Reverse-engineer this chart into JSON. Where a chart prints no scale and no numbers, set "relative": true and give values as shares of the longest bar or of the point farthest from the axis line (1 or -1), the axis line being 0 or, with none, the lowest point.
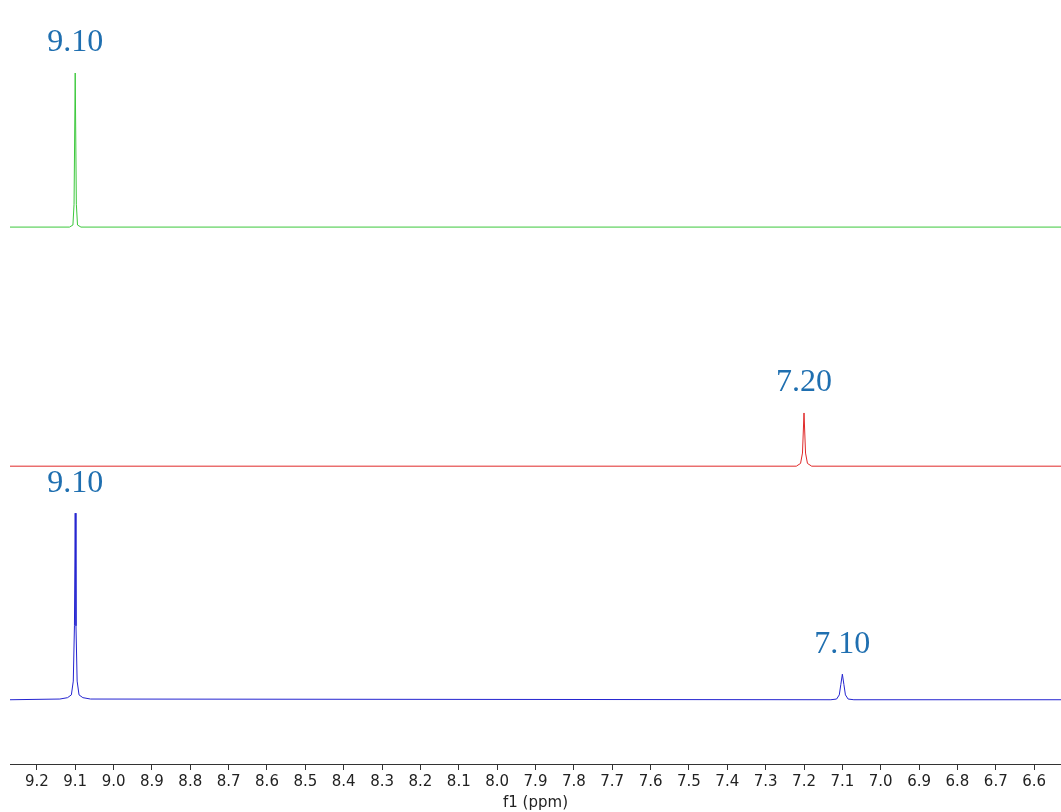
{
  "chart_data": {
    "type": "line",
    "relative": true,
    "xlim": [
      9.27,
      6.53
    ],
    "xlabel": "f1 (ppm)",
    "xticks": [
      9.2,
      9.1,
      {
        "value": 9,
        "label": "9.0"
      },
      8.9,
      8.8,
      8.7,
      8.6,
      8.5,
      8.4,
      8.3,
      8.2,
      8.1,
      {
        "value": 8,
        "label": "8.0"
      },
      7.9,
      7.8,
      7.7,
      7.6,
      7.5,
      7.4,
      7.3,
      7.2,
      7.1,
      {
        "value": 7,
        "label": "7.0"
      },
      6.9,
      6.8,
      6.7,
      6.6
    ],
    "series": [
      {
        "color": "#3cc83c",
        "x": [
          9.27,
          9.115,
          9.106,
          9.103,
          9.1,
          9.097,
          9.094,
          9.085,
          6.53
        ],
        "values": [
          0.777,
          0.777,
          0.78,
          0.81,
          1,
          0.81,
          0.78,
          0.777,
          0.777
        ]
      },
      {
        "color": "#e02828",
        "x": [
          9.27,
          7.22,
          7.209,
          7.204,
          7.2,
          7.196,
          7.191,
          7.18,
          6.53
        ],
        "values": [
          0.431,
          0.431,
          0.435,
          0.45,
          0.508,
          0.45,
          0.435,
          0.431,
          0.431
        ]
      },
      {
        "color": "#2424d0",
        "x": [
          9.27,
          9.14,
          9.12,
          9.11,
          9.105,
          9.102,
          9.1,
          9.098,
          9.095,
          9.09,
          9.08,
          9.06,
          7.13,
          7.115,
          7.108,
          7.104,
          7.1,
          7.096,
          7.092,
          7.085,
          7.07,
          6.53
        ],
        "values": [
          0.093,
          0.094,
          0.096,
          0.1,
          0.12,
          0.2,
          0.363,
          0.2,
          0.12,
          0.1,
          0.096,
          0.094,
          0.093,
          0.094,
          0.1,
          0.115,
          0.13,
          0.115,
          0.1,
          0.094,
          0.093,
          0.093
        ]
      }
    ],
    "annotations": [
      {
        "text": "9.10",
        "x": 9.1,
        "y": 1
      },
      {
        "text": "7.20",
        "x": 7.2,
        "y": 0.508
      },
      {
        "text": "9.10",
        "x": 9.1,
        "y": 0.363
      },
      {
        "text": "7.10",
        "x": 7.1,
        "y": 0.13
      }
    ]
  }
}
